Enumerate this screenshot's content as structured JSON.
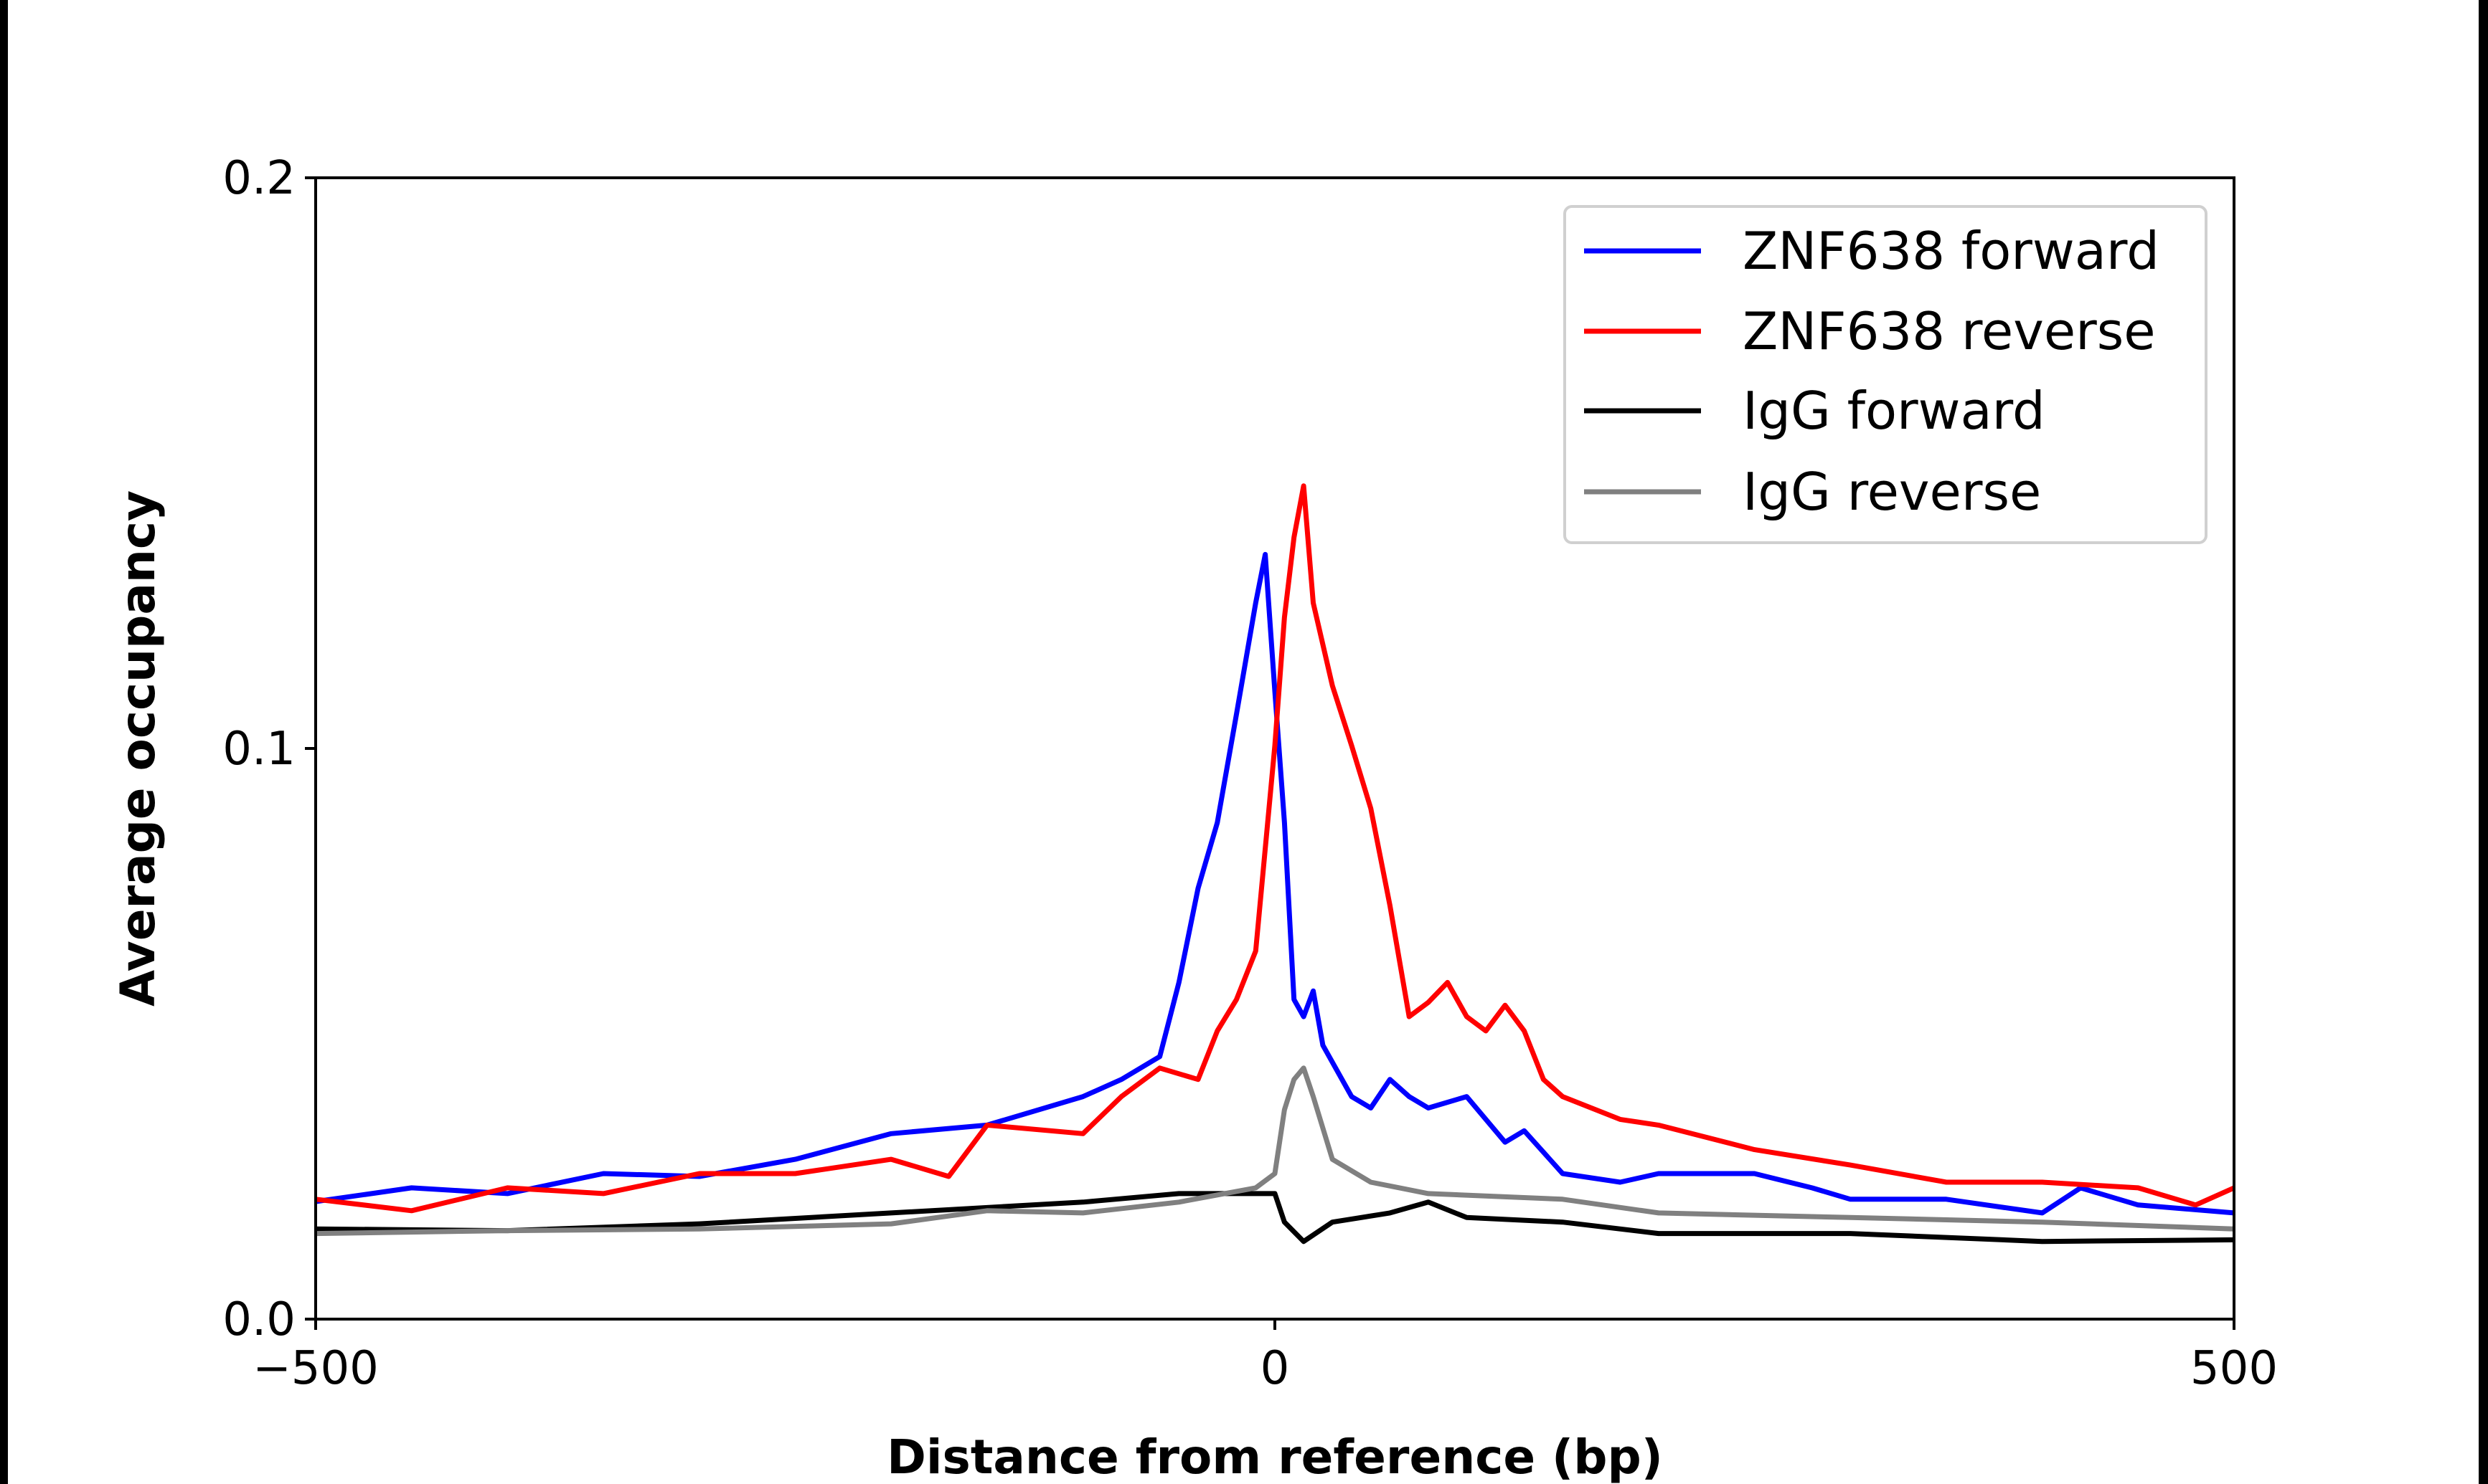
{
  "chart_data": {
    "type": "line",
    "title": "",
    "xlabel": "Distance from reference (bp)",
    "ylabel": "Average occupancy",
    "xlim": [
      -500,
      500
    ],
    "ylim": [
      0.0,
      0.2
    ],
    "xticks": [
      "−500",
      "0",
      "500"
    ],
    "xtick_values": [
      -500,
      0,
      500
    ],
    "yticks": [
      "0.0",
      "0.1",
      "0.2"
    ],
    "ytick_values": [
      0.0,
      0.1,
      0.2
    ],
    "grid": false,
    "legend_position": "top-right",
    "series": [
      {
        "name": "ZNF638 forward",
        "color": "#0000ff",
        "x": [
          -500,
          -450,
          -400,
          -350,
          -300,
          -250,
          -200,
          -150,
          -100,
          -80,
          -60,
          -50,
          -40,
          -30,
          -20,
          -10,
          -5,
          0,
          5,
          10,
          15,
          20,
          25,
          40,
          50,
          60,
          70,
          80,
          100,
          120,
          130,
          150,
          180,
          200,
          250,
          280,
          300,
          350,
          400,
          420,
          450,
          500
        ],
        "y": [
          0.0206,
          0.023,
          0.022,
          0.0255,
          0.025,
          0.028,
          0.0325,
          0.034,
          0.039,
          0.042,
          0.046,
          0.059,
          0.0755,
          0.087,
          0.106,
          0.1255,
          0.134,
          0.11,
          0.087,
          0.056,
          0.053,
          0.0575,
          0.048,
          0.039,
          0.037,
          0.042,
          0.039,
          0.037,
          0.039,
          0.031,
          0.033,
          0.0255,
          0.024,
          0.0255,
          0.0255,
          0.023,
          0.021,
          0.021,
          0.0186,
          0.023,
          0.02,
          0.0186
        ]
      },
      {
        "name": "ZNF638 reverse",
        "color": "#ff0000",
        "x": [
          -500,
          -450,
          -400,
          -350,
          -300,
          -250,
          -200,
          -170,
          -150,
          -100,
          -80,
          -60,
          -40,
          -30,
          -20,
          -10,
          0,
          5,
          10,
          15,
          20,
          30,
          40,
          50,
          60,
          70,
          80,
          90,
          100,
          110,
          120,
          130,
          140,
          150,
          180,
          200,
          250,
          300,
          350,
          400,
          450,
          480,
          500
        ],
        "y": [
          0.021,
          0.019,
          0.023,
          0.022,
          0.0255,
          0.0255,
          0.028,
          0.025,
          0.034,
          0.0325,
          0.039,
          0.044,
          0.042,
          0.0505,
          0.056,
          0.0645,
          0.1005,
          0.123,
          0.137,
          0.146,
          0.1255,
          0.111,
          0.1005,
          0.0895,
          0.0725,
          0.053,
          0.0555,
          0.059,
          0.053,
          0.0505,
          0.055,
          0.0505,
          0.042,
          0.039,
          0.035,
          0.034,
          0.0297,
          0.027,
          0.024,
          0.024,
          0.023,
          0.02,
          0.023
        ]
      },
      {
        "name": "IgG forward",
        "color": "#000000",
        "x": [
          -500,
          -400,
          -300,
          -200,
          -100,
          -50,
          0,
          5,
          15,
          30,
          60,
          80,
          100,
          150,
          200,
          300,
          400,
          500
        ],
        "y": [
          0.0158,
          0.0155,
          0.0167,
          0.0186,
          0.0205,
          0.022,
          0.022,
          0.017,
          0.0136,
          0.017,
          0.0186,
          0.0205,
          0.0178,
          0.017,
          0.015,
          0.015,
          0.0136,
          0.0139
        ]
      },
      {
        "name": "IgG reverse",
        "color": "#808080",
        "x": [
          -500,
          -400,
          -300,
          -200,
          -150,
          -100,
          -50,
          -10,
          0,
          5,
          10,
          15,
          20,
          30,
          50,
          80,
          150,
          200,
          300,
          400,
          500
        ],
        "y": [
          0.015,
          0.0155,
          0.0158,
          0.0167,
          0.019,
          0.0186,
          0.0205,
          0.023,
          0.0255,
          0.0367,
          0.042,
          0.044,
          0.039,
          0.028,
          0.024,
          0.022,
          0.021,
          0.0186,
          0.0178,
          0.017,
          0.0158
        ]
      }
    ]
  }
}
